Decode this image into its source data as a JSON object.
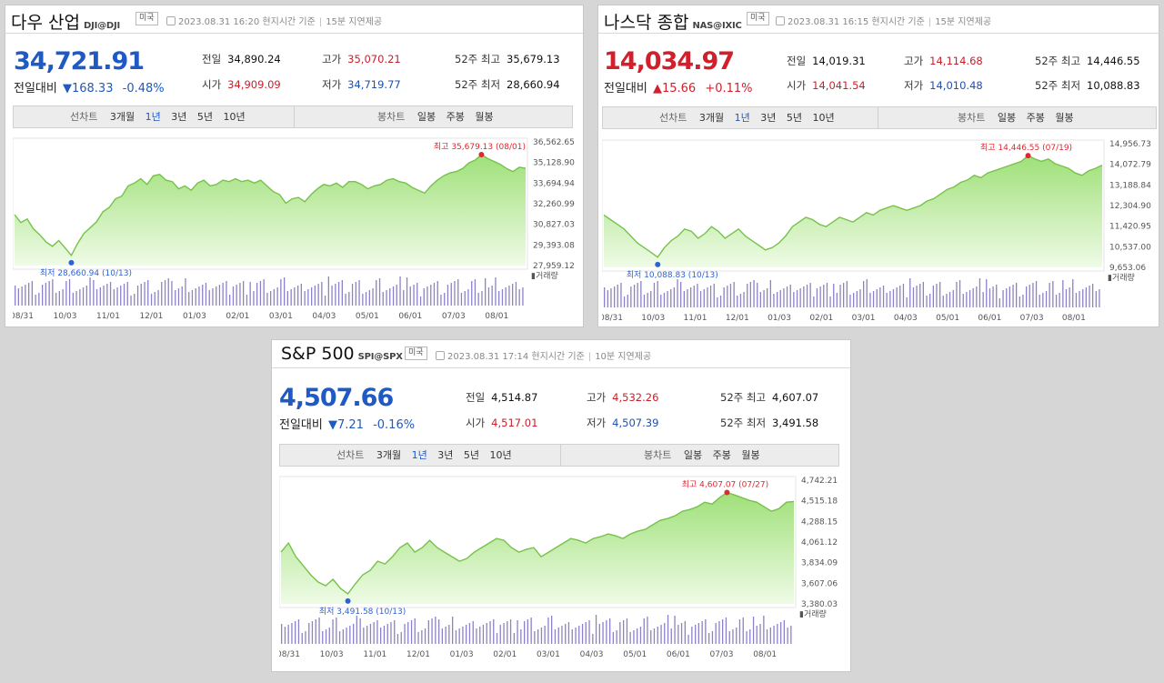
{
  "panels": [
    {
      "name": "다우 산업",
      "code": "DJI@DJI",
      "badge": "미국",
      "datetime": "2023.08.31 16:20 현지시간 기준",
      "delay": "15분 지연제공",
      "price": "34,721.91",
      "direction": "down",
      "change_label": "전일대비",
      "change_arrow": "▼",
      "change_abs": "168.33",
      "change_pct": "-0.48%",
      "stats": {
        "prev_label": "전일",
        "prev": "34,890.24",
        "open_label": "시가",
        "open": "34,909.09",
        "high_label": "고가",
        "high": "35,070.21",
        "low_label": "저가",
        "low": "34,719.77",
        "w52_high_label": "52주 최고",
        "w52_high": "35,679.13",
        "w52_low_label": "52주 최저",
        "w52_low": "28,660.94"
      },
      "tabs": {
        "left_label": "선차트",
        "periods": [
          "3개월",
          "1년",
          "3년",
          "5년",
          "10년"
        ],
        "selected_period": "1년",
        "right_label": "봉차트",
        "candles": [
          "일봉",
          "주봉",
          "월봉"
        ]
      },
      "chart_data": {
        "type": "area",
        "y_ticks": [
          "36,562.65",
          "35,128.90",
          "33,694.94",
          "32,260.99",
          "30,827.03",
          "29,393.08",
          "27,959.12"
        ],
        "ylim": [
          27959.12,
          36562.65
        ],
        "x_ticks": [
          "08/31",
          "10/03",
          "11/01",
          "12/01",
          "01/03",
          "02/01",
          "03/01",
          "04/03",
          "05/01",
          "06/01",
          "07/03",
          "08/01"
        ],
        "high_annotation": "최고 35,679.13 (08/01)",
        "low_annotation": "최저 28,660.94 (10/13)",
        "volume_label": "거래량",
        "values": [
          31500,
          30950,
          31200,
          30500,
          30100,
          29600,
          29300,
          29700,
          29200,
          28660.94,
          29500,
          30200,
          30600,
          31000,
          31700,
          32000,
          32600,
          32800,
          33500,
          33700,
          34000,
          33600,
          34200,
          34300,
          33900,
          33800,
          33300,
          33500,
          33200,
          33700,
          33900,
          33500,
          33600,
          33900,
          33800,
          34000,
          33800,
          33900,
          33700,
          33900,
          33500,
          33100,
          32900,
          32300,
          32600,
          32700,
          32400,
          32900,
          33300,
          33600,
          33500,
          33700,
          33400,
          33800,
          33800,
          33600,
          33300,
          33500,
          33600,
          33900,
          34000,
          33800,
          33700,
          33400,
          33200,
          33000,
          33500,
          33900,
          34200,
          34400,
          34500,
          34700,
          35100,
          35300,
          35679.13,
          35400,
          35200,
          35000,
          34700,
          34500,
          34800,
          34721.91
        ]
      }
    },
    {
      "name": "나스닥 종합",
      "code": "NAS@IXIC",
      "badge": "미국",
      "datetime": "2023.08.31 16:15 현지시간 기준",
      "delay": "15분 지연제공",
      "price": "14,034.97",
      "direction": "up",
      "change_label": "전일대비",
      "change_arrow": "▲",
      "change_abs": "15.66",
      "change_pct": "+0.11%",
      "stats": {
        "prev_label": "전일",
        "prev": "14,019.31",
        "open_label": "시가",
        "open": "14,041.54",
        "high_label": "고가",
        "high": "14,114.68",
        "low_label": "저가",
        "low": "14,010.48",
        "w52_high_label": "52주 최고",
        "w52_high": "14,446.55",
        "w52_low_label": "52주 최저",
        "w52_low": "10,088.83"
      },
      "tabs": {
        "left_label": "선차트",
        "periods": [
          "3개월",
          "1년",
          "3년",
          "5년",
          "10년"
        ],
        "selected_period": "1년",
        "right_label": "봉차트",
        "candles": [
          "일봉",
          "주봉",
          "월봉"
        ]
      },
      "chart_data": {
        "type": "area",
        "y_ticks": [
          "14,956.73",
          "14,072.79",
          "13,188.84",
          "12,304.90",
          "11,420.95",
          "10,537.00",
          "9,653.06"
        ],
        "ylim": [
          9653.06,
          14956.73
        ],
        "x_ticks": [
          "08/31",
          "10/03",
          "11/01",
          "12/01",
          "01/03",
          "02/01",
          "03/01",
          "04/03",
          "05/01",
          "06/01",
          "07/03",
          "08/01"
        ],
        "high_annotation": "최고 14,446.55 (07/19)",
        "low_annotation": "최저 10,088.83 (10/13)",
        "volume_label": "거래량",
        "values": [
          11900,
          11700,
          11500,
          11300,
          11000,
          10700,
          10500,
          10300,
          10088.83,
          10500,
          10800,
          11000,
          11300,
          11200,
          10900,
          11100,
          11400,
          11200,
          10900,
          11100,
          11300,
          11000,
          10800,
          10600,
          10400,
          10500,
          10700,
          11000,
          11400,
          11600,
          11800,
          11700,
          11500,
          11400,
          11600,
          11800,
          11700,
          11600,
          11800,
          12000,
          11900,
          12100,
          12200,
          12300,
          12200,
          12100,
          12200,
          12300,
          12500,
          12600,
          12800,
          13000,
          13100,
          13300,
          13400,
          13600,
          13500,
          13700,
          13800,
          13900,
          14000,
          14100,
          14200,
          14446.55,
          14300,
          14200,
          14300,
          14100,
          14000,
          13900,
          13700,
          13600,
          13800,
          13900,
          14034.97
        ]
      }
    },
    {
      "name": "S&P 500",
      "code": "SPI@SPX",
      "badge": "미국",
      "datetime": "2023.08.31 17:14 현지시간 기준",
      "delay": "10분 지연제공",
      "price": "4,507.66",
      "direction": "down",
      "change_label": "전일대비",
      "change_arrow": "▼",
      "change_abs": "7.21",
      "change_pct": "-0.16%",
      "stats": {
        "prev_label": "전일",
        "prev": "4,514.87",
        "open_label": "시가",
        "open": "4,517.01",
        "high_label": "고가",
        "high": "4,532.26",
        "low_label": "저가",
        "low": "4,507.39",
        "w52_high_label": "52주 최고",
        "w52_high": "4,607.07",
        "w52_low_label": "52주 최저",
        "w52_low": "3,491.58"
      },
      "tabs": {
        "left_label": "선차트",
        "periods": [
          "3개월",
          "1년",
          "3년",
          "5년",
          "10년"
        ],
        "selected_period": "1년",
        "right_label": "봉차트",
        "candles": [
          "일봉",
          "주봉",
          "월봉"
        ]
      },
      "chart_data": {
        "type": "area",
        "y_ticks": [
          "4,742.21",
          "4,515.18",
          "4,288.15",
          "4,061.12",
          "3,834.09",
          "3,607.06",
          "3,380.03"
        ],
        "ylim": [
          3380.03,
          4742.21
        ],
        "x_ticks": [
          "08/31",
          "10/03",
          "11/01",
          "12/01",
          "01/03",
          "02/01",
          "03/01",
          "04/03",
          "05/01",
          "06/01",
          "07/03",
          "08/01"
        ],
        "high_annotation": "최고 4,607.07 (07/27)",
        "low_annotation": "최저 3,491.58 (10/13)",
        "volume_label": "거래량",
        "values": [
          3950,
          4050,
          3900,
          3800,
          3700,
          3620,
          3580,
          3650,
          3550,
          3491.58,
          3600,
          3700,
          3750,
          3850,
          3820,
          3900,
          4000,
          4050,
          3950,
          4000,
          4080,
          4000,
          3950,
          3900,
          3850,
          3880,
          3950,
          4000,
          4050,
          4100,
          4080,
          4000,
          3950,
          3980,
          4000,
          3900,
          3950,
          4000,
          4050,
          4100,
          4080,
          4050,
          4100,
          4120,
          4150,
          4130,
          4100,
          4150,
          4180,
          4200,
          4250,
          4300,
          4320,
          4350,
          4400,
          4420,
          4450,
          4500,
          4480,
          4550,
          4607.07,
          4580,
          4550,
          4520,
          4500,
          4450,
          4400,
          4430,
          4500,
          4507.66
        ]
      }
    }
  ]
}
